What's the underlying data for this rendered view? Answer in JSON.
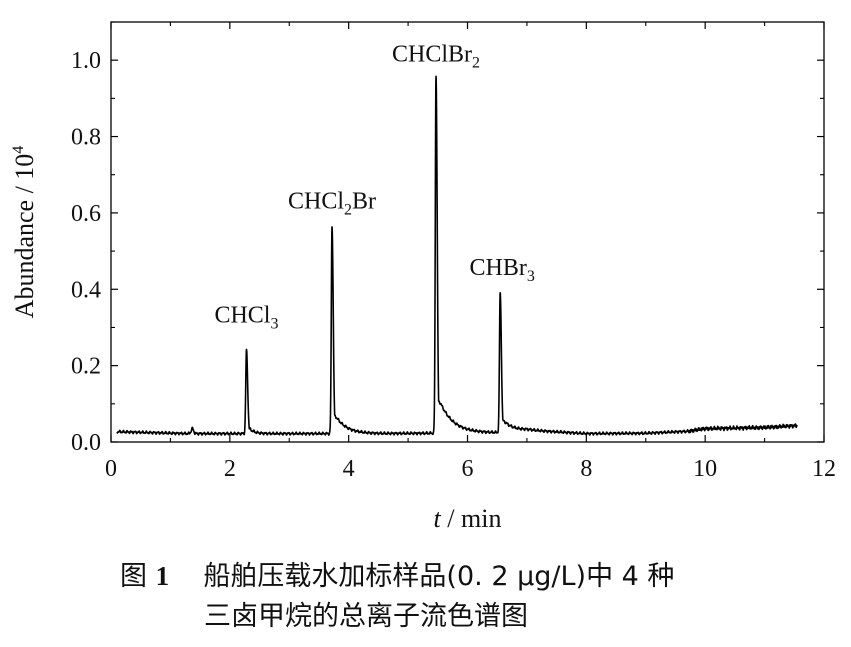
{
  "chart_data": {
    "type": "line",
    "xlabel": "t / min",
    "xlabel_italic": "t",
    "xlabel_unit": " / min",
    "ylabel": "Abundance / 10^4",
    "ylabel_text": "Abundance / 10",
    "ylabel_exp": "4",
    "xlim": [
      0,
      12
    ],
    "ylim": [
      0,
      1.1
    ],
    "x_ticks": [
      "0",
      "2",
      "4",
      "6",
      "8",
      "10",
      "12"
    ],
    "x_tick_values": [
      0,
      2,
      4,
      6,
      8,
      10,
      12
    ],
    "y_ticks": [
      "0.0",
      "0.2",
      "0.4",
      "0.6",
      "0.8",
      "1.0"
    ],
    "y_tick_values": [
      0,
      0.2,
      0.4,
      0.6,
      0.8,
      1.0
    ],
    "x_start": 0.1,
    "x_end": 11.55,
    "baseline": [
      [
        0.1,
        0.027
      ],
      [
        1.3,
        0.022
      ],
      [
        2.0,
        0.022
      ],
      [
        3.0,
        0.022
      ],
      [
        3.5,
        0.022
      ],
      [
        4.5,
        0.022
      ],
      [
        5.3,
        0.023
      ],
      [
        6.5,
        0.024
      ],
      [
        7.0,
        0.031
      ],
      [
        8.0,
        0.022
      ],
      [
        9.0,
        0.023
      ],
      [
        9.7,
        0.028
      ],
      [
        10.0,
        0.035
      ],
      [
        11.0,
        0.038
      ],
      [
        11.55,
        0.043
      ]
    ],
    "peaks": [
      {
        "name": "CHCl3",
        "label": "CHCl",
        "sub": "3",
        "suffix": "",
        "x": 2.28,
        "y": 0.24,
        "tail": 0.08
      },
      {
        "name": "CHCl2Br",
        "label": "CHCl",
        "sub": "2",
        "suffix": "Br",
        "x": 3.72,
        "y": 0.565,
        "tail": 0.18
      },
      {
        "name": "CHClBr2",
        "label": "CHClBr",
        "sub": "2",
        "suffix": "",
        "x": 5.47,
        "y": 0.96,
        "tail": 0.22
      },
      {
        "name": "CHBr3",
        "label": "CHBr",
        "sub": "3",
        "suffix": "",
        "x": 6.55,
        "y": 0.39,
        "tail": 0.16
      }
    ],
    "minor_peaks": [
      {
        "x": 1.37,
        "y": 0.035
      }
    ]
  },
  "caption": {
    "label": "图",
    "number": "1",
    "line1_text": "船舶压载水加标样品(0. 2 μg/L)中 4 种",
    "line2_text": "三卤甲烷的总离子流色谱图"
  }
}
